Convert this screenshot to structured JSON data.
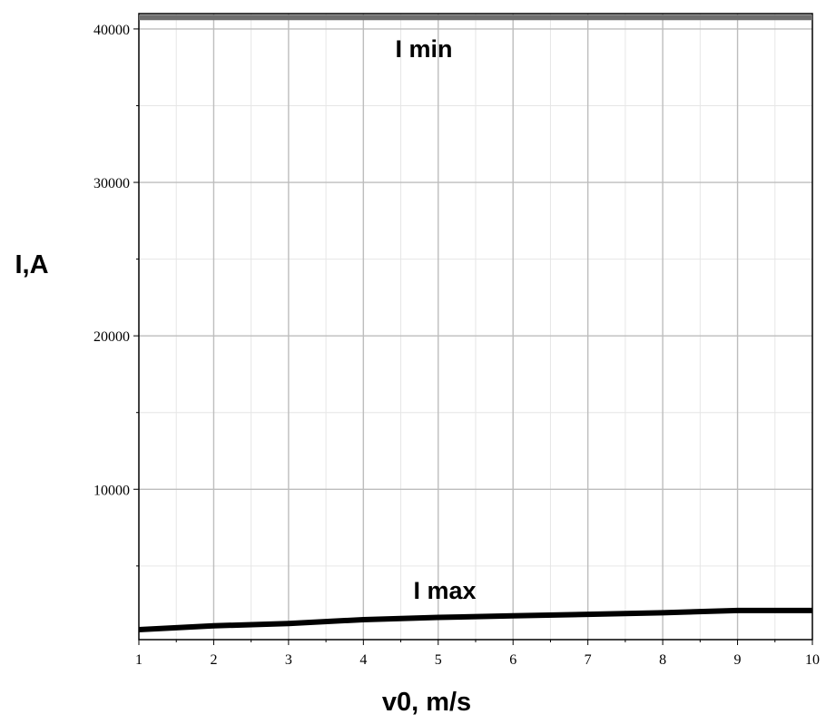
{
  "chart_data": {
    "type": "line",
    "xlabel": "v0, m/s",
    "ylabel": "I,A",
    "xlim": [
      1,
      10
    ],
    "ylim": [
      200,
      41000
    ],
    "grid": true,
    "x_ticks": [
      1,
      2,
      3,
      4,
      5,
      6,
      7,
      8,
      9,
      10
    ],
    "y_ticks": [
      10000,
      20000,
      30000,
      40000
    ],
    "y_tick_labels": [
      "10000",
      "20000",
      "30000",
      "40000"
    ],
    "series": [
      {
        "name": "I min",
        "color": "#6e6e6e",
        "x": [
          1,
          2,
          3,
          4,
          5,
          6,
          7,
          8,
          9,
          10
        ],
        "y": [
          40750,
          40750,
          40750,
          40750,
          40750,
          40750,
          40750,
          40750,
          40750,
          40750
        ]
      },
      {
        "name": "I max",
        "color": "#000000",
        "x": [
          1,
          2,
          3,
          4,
          5,
          6,
          7,
          8,
          9,
          10
        ],
        "y": [
          850,
          1100,
          1250,
          1500,
          1650,
          1750,
          1850,
          1950,
          2100,
          2100
        ]
      }
    ]
  }
}
